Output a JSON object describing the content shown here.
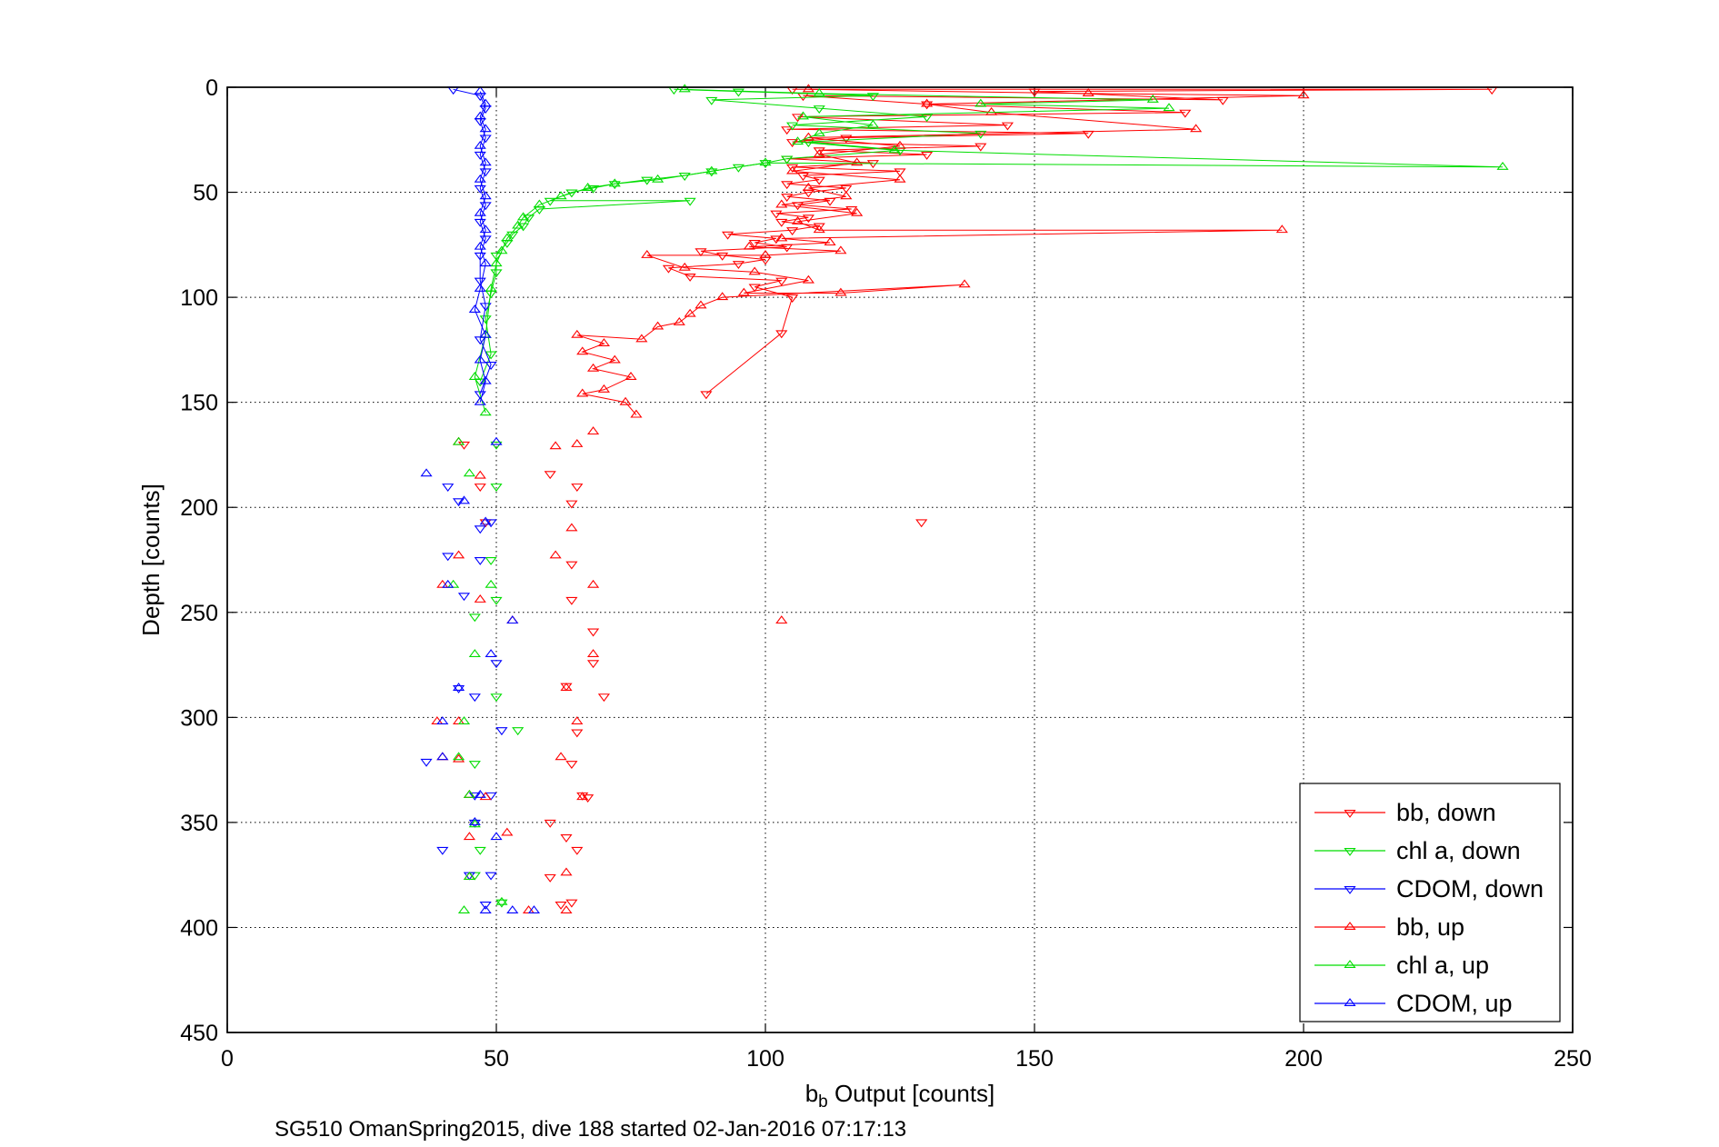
{
  "chart_data": {
    "type": "scatter",
    "xlabel_main": "b",
    "xlabel_sub": "b",
    "xlabel_rest": " Output [counts]",
    "ylabel": "Depth [counts]",
    "caption": "SG510 OmanSpring2015, dive 188 started 02-Jan-2016 07:17:13",
    "xlim": [
      0,
      250
    ],
    "ylim": [
      0,
      450
    ],
    "y_reversed": true,
    "x_ticks": [
      0,
      50,
      100,
      150,
      200,
      250
    ],
    "y_ticks": [
      0,
      50,
      100,
      150,
      200,
      250,
      300,
      350,
      400,
      450
    ],
    "grid": true,
    "legend_position": "bottom-right",
    "colors": {
      "bb": "#ff0000",
      "chl": "#00dd00",
      "cdom": "#0000ff"
    },
    "series": [
      {
        "name": "bb, down",
        "color": "#ff0000",
        "marker": "triangle-down",
        "line": true,
        "points": [
          [
            105,
            1
          ],
          [
            235,
            1
          ],
          [
            150,
            2
          ],
          [
            185,
            6
          ],
          [
            107,
            4
          ],
          [
            130,
            8
          ],
          [
            178,
            12
          ],
          [
            106,
            14
          ],
          [
            145,
            18
          ],
          [
            104,
            20
          ],
          [
            160,
            22
          ],
          [
            115,
            24
          ],
          [
            105,
            26
          ],
          [
            140,
            28
          ],
          [
            110,
            30
          ],
          [
            130,
            32
          ],
          [
            104,
            34
          ],
          [
            120,
            36
          ],
          [
            105,
            38
          ],
          [
            125,
            40
          ],
          [
            107,
            42
          ],
          [
            110,
            44
          ],
          [
            104,
            46
          ],
          [
            115,
            48
          ],
          [
            108,
            50
          ],
          [
            104,
            52
          ],
          [
            112,
            54
          ],
          [
            106,
            56
          ],
          [
            116,
            58
          ],
          [
            102,
            60
          ],
          [
            108,
            62
          ],
          [
            103,
            64
          ],
          [
            110,
            66
          ],
          [
            105,
            68
          ],
          [
            93,
            70
          ],
          [
            102,
            72
          ],
          [
            98,
            74
          ],
          [
            104,
            76
          ],
          [
            88,
            78
          ],
          [
            92,
            80
          ],
          [
            100,
            82
          ],
          [
            95,
            84
          ],
          [
            82,
            86
          ],
          [
            86,
            90
          ],
          [
            103,
            92
          ],
          [
            98,
            95
          ],
          [
            105,
            100
          ],
          [
            103,
            117
          ],
          [
            89,
            146
          ],
          [
            129,
            207
          ],
          [
            44,
            170
          ],
          [
            47,
            190
          ],
          [
            60,
            184
          ],
          [
            65,
            190
          ],
          [
            64,
            198
          ],
          [
            48,
            207
          ],
          [
            64,
            227
          ],
          [
            64,
            244
          ],
          [
            68,
            259
          ],
          [
            68,
            274
          ],
          [
            70,
            290
          ],
          [
            63,
            285
          ],
          [
            65,
            307
          ],
          [
            60,
            350
          ],
          [
            63,
            357
          ],
          [
            65,
            363
          ],
          [
            60,
            376
          ],
          [
            62,
            389
          ],
          [
            64,
            388
          ],
          [
            66,
            337
          ],
          [
            67,
            338
          ],
          [
            64,
            322
          ]
        ]
      },
      {
        "name": "chl a, down",
        "color": "#00dd00",
        "marker": "triangle-down",
        "line": true,
        "points": [
          [
            83,
            1
          ],
          [
            95,
            2
          ],
          [
            120,
            4
          ],
          [
            90,
            6
          ],
          [
            110,
            10
          ],
          [
            130,
            14
          ],
          [
            105,
            18
          ],
          [
            140,
            22
          ],
          [
            108,
            26
          ],
          [
            125,
            30
          ],
          [
            104,
            34
          ],
          [
            100,
            36
          ],
          [
            95,
            38
          ],
          [
            90,
            40
          ],
          [
            85,
            42
          ],
          [
            78,
            44
          ],
          [
            72,
            46
          ],
          [
            68,
            48
          ],
          [
            64,
            50
          ],
          [
            60,
            54
          ],
          [
            86,
            54
          ],
          [
            58,
            58
          ],
          [
            56,
            62
          ],
          [
            55,
            66
          ],
          [
            53,
            70
          ],
          [
            52,
            74
          ],
          [
            50,
            80
          ],
          [
            50,
            88
          ],
          [
            49,
            98
          ],
          [
            48,
            110
          ],
          [
            49,
            127
          ],
          [
            47,
            140
          ],
          [
            50,
            170
          ],
          [
            50,
            190
          ],
          [
            49,
            225
          ],
          [
            50,
            244
          ],
          [
            46,
            252
          ],
          [
            50,
            290
          ],
          [
            54,
            306
          ],
          [
            46,
            322
          ],
          [
            47,
            363
          ],
          [
            46,
            375
          ],
          [
            51,
            388
          ]
        ]
      },
      {
        "name": "CDOM, down",
        "color": "#0000ff",
        "marker": "triangle-down",
        "line": true,
        "points": [
          [
            42,
            1
          ],
          [
            47,
            4
          ],
          [
            48,
            10
          ],
          [
            47,
            16
          ],
          [
            48,
            24
          ],
          [
            47,
            32
          ],
          [
            48,
            40
          ],
          [
            47,
            48
          ],
          [
            48,
            56
          ],
          [
            47,
            64
          ],
          [
            48,
            72
          ],
          [
            47,
            80
          ],
          [
            47,
            92
          ],
          [
            48,
            104
          ],
          [
            47,
            120
          ],
          [
            49,
            132
          ],
          [
            47,
            146
          ],
          [
            41,
            190
          ],
          [
            43,
            197
          ],
          [
            49,
            207
          ],
          [
            47,
            210
          ],
          [
            41,
            223
          ],
          [
            47,
            225
          ],
          [
            44,
            242
          ],
          [
            43,
            286
          ],
          [
            46,
            290
          ],
          [
            50,
            274
          ],
          [
            51,
            306
          ],
          [
            37,
            321
          ],
          [
            46,
            337
          ],
          [
            49,
            337
          ],
          [
            46,
            350
          ],
          [
            40,
            363
          ],
          [
            45,
            375
          ],
          [
            49,
            375
          ],
          [
            48,
            389
          ]
        ]
      },
      {
        "name": "bb, up",
        "color": "#ff0000",
        "marker": "triangle-up",
        "line": true,
        "points": [
          [
            108,
            1
          ],
          [
            160,
            3
          ],
          [
            200,
            4
          ],
          [
            130,
            8
          ],
          [
            142,
            12
          ],
          [
            180,
            20
          ],
          [
            108,
            24
          ],
          [
            125,
            28
          ],
          [
            110,
            32
          ],
          [
            117,
            36
          ],
          [
            105,
            40
          ],
          [
            125,
            44
          ],
          [
            108,
            48
          ],
          [
            115,
            52
          ],
          [
            103,
            56
          ],
          [
            117,
            60
          ],
          [
            106,
            64
          ],
          [
            110,
            68
          ],
          [
            196,
            68
          ],
          [
            103,
            72
          ],
          [
            112,
            74
          ],
          [
            97,
            76
          ],
          [
            114,
            78
          ],
          [
            100,
            80
          ],
          [
            78,
            80
          ],
          [
            85,
            86
          ],
          [
            98,
            88
          ],
          [
            108,
            92
          ],
          [
            96,
            98
          ],
          [
            114,
            98
          ],
          [
            137,
            94
          ],
          [
            92,
            100
          ],
          [
            88,
            104
          ],
          [
            86,
            108
          ],
          [
            84,
            112
          ],
          [
            80,
            114
          ],
          [
            77,
            120
          ],
          [
            65,
            118
          ],
          [
            70,
            122
          ],
          [
            66,
            126
          ],
          [
            72,
            130
          ],
          [
            68,
            134
          ],
          [
            75,
            138
          ],
          [
            70,
            144
          ],
          [
            66,
            146
          ],
          [
            74,
            150
          ],
          [
            76,
            156
          ],
          [
            68,
            164
          ],
          [
            61,
            171
          ],
          [
            65,
            170
          ],
          [
            43,
            169
          ],
          [
            47,
            185
          ],
          [
            64,
            210
          ],
          [
            43,
            223
          ],
          [
            61,
            223
          ],
          [
            68,
            237
          ],
          [
            40,
            237
          ],
          [
            47,
            244
          ],
          [
            53,
            254
          ],
          [
            68,
            270
          ],
          [
            63,
            286
          ],
          [
            39,
            302
          ],
          [
            65,
            302
          ],
          [
            43,
            302
          ],
          [
            40,
            319
          ],
          [
            62,
            319
          ],
          [
            43,
            320
          ],
          [
            45,
            337
          ],
          [
            66,
            338
          ],
          [
            45,
            357
          ],
          [
            52,
            355
          ],
          [
            48,
            338
          ],
          [
            63,
            374
          ],
          [
            45,
            376
          ],
          [
            56,
            392
          ],
          [
            63,
            392
          ],
          [
            103,
            254
          ]
        ]
      },
      {
        "name": "chl a, up",
        "color": "#00dd00",
        "marker": "triangle-up",
        "line": true,
        "points": [
          [
            85,
            1
          ],
          [
            110,
            3
          ],
          [
            172,
            6
          ],
          [
            140,
            8
          ],
          [
            175,
            10
          ],
          [
            107,
            14
          ],
          [
            120,
            18
          ],
          [
            110,
            22
          ],
          [
            106,
            26
          ],
          [
            124,
            30
          ],
          [
            237,
            38
          ],
          [
            100,
            36
          ],
          [
            90,
            40
          ],
          [
            80,
            44
          ],
          [
            72,
            46
          ],
          [
            67,
            48
          ],
          [
            62,
            52
          ],
          [
            58,
            56
          ],
          [
            55,
            62
          ],
          [
            54,
            66
          ],
          [
            52,
            72
          ],
          [
            51,
            78
          ],
          [
            50,
            84
          ],
          [
            49,
            96
          ],
          [
            48,
            118
          ],
          [
            46,
            138
          ],
          [
            48,
            155
          ],
          [
            43,
            169
          ],
          [
            45,
            184
          ],
          [
            49,
            237
          ],
          [
            42,
            237
          ],
          [
            46,
            270
          ],
          [
            44,
            302
          ],
          [
            43,
            319
          ],
          [
            45,
            337
          ],
          [
            46,
            351
          ],
          [
            45,
            376
          ],
          [
            44,
            392
          ],
          [
            51,
            388
          ]
        ]
      },
      {
        "name": "CDOM, up",
        "color": "#0000ff",
        "marker": "triangle-up",
        "line": true,
        "points": [
          [
            47,
            2
          ],
          [
            48,
            8
          ],
          [
            47,
            14
          ],
          [
            48,
            20
          ],
          [
            47,
            28
          ],
          [
            48,
            36
          ],
          [
            47,
            44
          ],
          [
            48,
            52
          ],
          [
            47,
            60
          ],
          [
            48,
            68
          ],
          [
            47,
            76
          ],
          [
            48,
            84
          ],
          [
            47,
            96
          ],
          [
            46,
            106
          ],
          [
            48,
            118
          ],
          [
            47,
            130
          ],
          [
            48,
            140
          ],
          [
            47,
            150
          ],
          [
            50,
            169
          ],
          [
            37,
            184
          ],
          [
            44,
            197
          ],
          [
            48,
            207
          ],
          [
            41,
            237
          ],
          [
            53,
            254
          ],
          [
            49,
            270
          ],
          [
            43,
            286
          ],
          [
            40,
            302
          ],
          [
            40,
            319
          ],
          [
            47,
            337
          ],
          [
            46,
            350
          ],
          [
            50,
            357
          ],
          [
            48,
            392
          ],
          [
            53,
            392
          ],
          [
            57,
            392
          ]
        ]
      }
    ]
  }
}
